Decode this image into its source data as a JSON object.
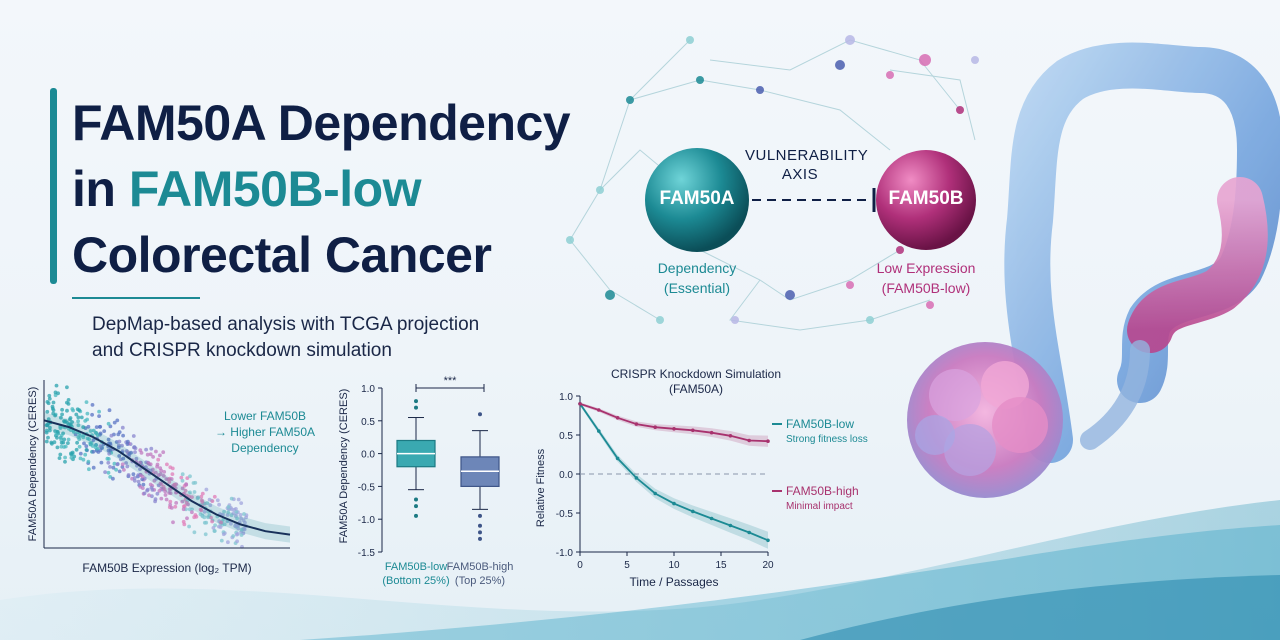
{
  "title": {
    "line1": "FAM50A Dependency",
    "line2_pre": "in ",
    "line2_accent": "FAM50B-low",
    "line3": "Colorectal Cancer"
  },
  "subtitle": {
    "line1": "DepMap-based analysis with TCGA projection",
    "line2": "and CRISPR knockdown simulation"
  },
  "diagram": {
    "node_a": "FAM50A",
    "node_b": "FAM50B",
    "axis_label_1": "VULNERABILITY",
    "axis_label_2": "AXIS",
    "node_a_caption_1": "Dependency",
    "node_a_caption_2": "(Essential)",
    "node_b_caption_1": "Low Expression",
    "node_b_caption_2": "(FAM50B-low)",
    "colors": {
      "teal": "#1c8a94",
      "magenta": "#b0307a"
    }
  },
  "chart_data": [
    {
      "type": "scatter",
      "xlabel": "FAM50B Expression (log₂ TPM)",
      "ylabel": "FAM50A Dependency (CERES)",
      "annotation": [
        "Lower FAM50B",
        "→ Higher FAM50A",
        "Dependency"
      ],
      "x_range": [
        0,
        10
      ],
      "y_range": [
        -1.5,
        1.0
      ],
      "trend": [
        [
          0,
          0.4
        ],
        [
          1,
          0.3
        ],
        [
          2,
          0.15
        ],
        [
          3,
          -0.05
        ],
        [
          4,
          -0.3
        ],
        [
          5,
          -0.55
        ],
        [
          6,
          -0.8
        ],
        [
          7,
          -1.0
        ],
        [
          8,
          -1.15
        ],
        [
          9,
          -1.25
        ],
        [
          10,
          -1.3
        ]
      ]
    },
    {
      "type": "box",
      "ylabel": "FAM50A Dependency (CERES)",
      "yticks": [
        "1.0",
        "0.5",
        "0.0",
        "-0.5",
        "-1.0",
        "-1.5"
      ],
      "ylim": [
        -1.5,
        1.0
      ],
      "significance": "***",
      "groups": [
        {
          "label_1": "FAM50B-low",
          "label_2": "(Bottom 25%)",
          "q1": -0.2,
          "median": 0.0,
          "q3": 0.2,
          "whisker_low": -0.55,
          "whisker_high": 0.55,
          "outliers": [
            0.8,
            0.7,
            -0.7,
            -0.8,
            -0.95
          ]
        },
        {
          "label_1": "FAM50B-high",
          "label_2": "(Top 25%)",
          "q1": -0.5,
          "median": -0.27,
          "q3": -0.05,
          "whisker_low": -0.85,
          "whisker_high": 0.35,
          "outliers": [
            0.6,
            -0.95,
            -1.1,
            -1.2,
            -1.3
          ]
        }
      ]
    },
    {
      "type": "line",
      "title_1": "CRISPR Knockdown Simulation",
      "title_2": "(FAM50A)",
      "xlabel": "Time / Passages",
      "ylabel": "Relative Fitness",
      "xlim": [
        0,
        20
      ],
      "ylim": [
        -1.0,
        1.0
      ],
      "xticks": [
        "0",
        "5",
        "10",
        "15",
        "20"
      ],
      "yticks": [
        "1.0",
        "0.5",
        "0.0",
        "-0.5",
        "-1.0"
      ],
      "series": [
        {
          "name": "FAM50B-low",
          "note": "Strong fitness loss",
          "color": "#1c8a94",
          "x": [
            0,
            2,
            4,
            6,
            8,
            10,
            12,
            14,
            16,
            18,
            20
          ],
          "y": [
            0.9,
            0.55,
            0.2,
            -0.05,
            -0.25,
            -0.38,
            -0.48,
            -0.57,
            -0.66,
            -0.75,
            -0.85
          ]
        },
        {
          "name": "FAM50B-high",
          "note": "Minimal impact",
          "color": "#a8326e",
          "x": [
            0,
            2,
            4,
            6,
            8,
            10,
            12,
            14,
            16,
            18,
            20
          ],
          "y": [
            0.9,
            0.82,
            0.72,
            0.64,
            0.6,
            0.58,
            0.56,
            0.53,
            0.49,
            0.43,
            0.42
          ]
        }
      ]
    }
  ]
}
